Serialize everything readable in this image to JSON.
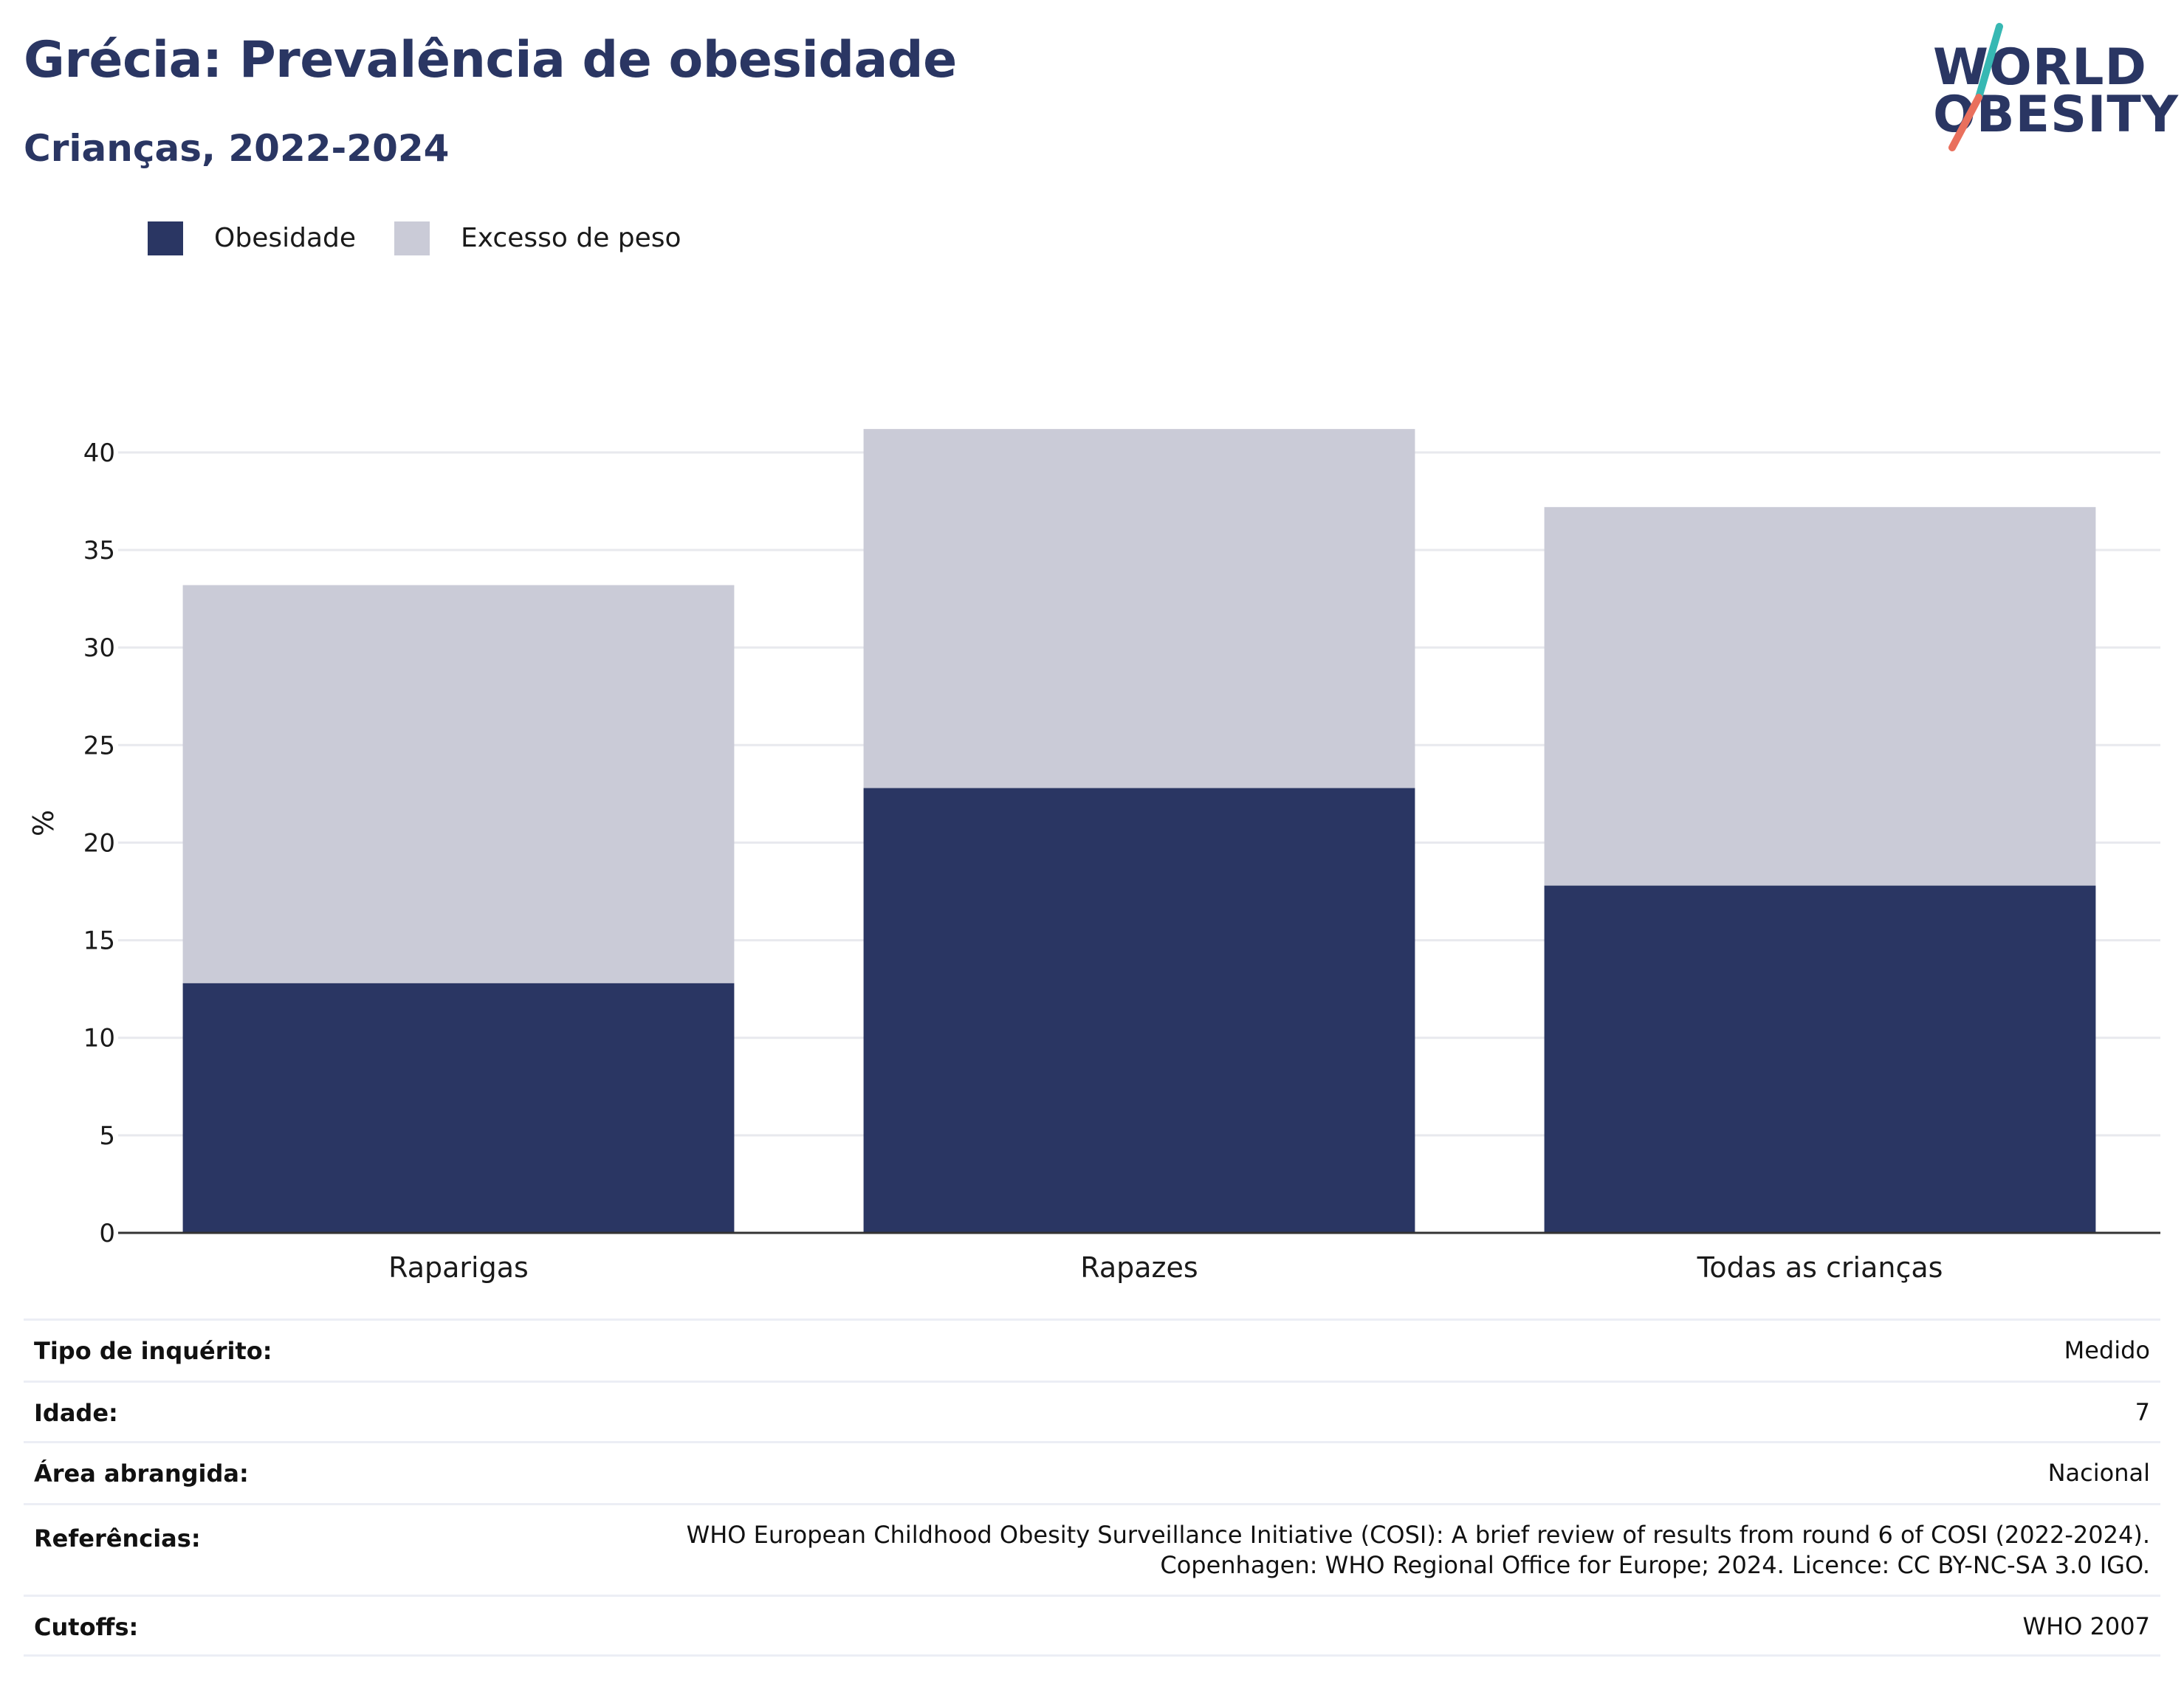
{
  "header": {
    "title": "Grécia: Prevalência de obesidade",
    "subtitle": "Crianças, 2022-2024"
  },
  "logo": {
    "line1": "WORLD",
    "line2": "OBESITY",
    "slash_color_top": "#37b8b3",
    "slash_color_bottom": "#e9705d"
  },
  "legend": [
    {
      "label": "Obesidade",
      "color": "#2a3663"
    },
    {
      "label": "Excesso de peso",
      "color": "#cacbd7"
    }
  ],
  "chart_data": {
    "type": "bar",
    "stacked": true,
    "categories": [
      "Raparigas",
      "Rapazes",
      "Todas as crianças"
    ],
    "series": [
      {
        "name": "Obesidade",
        "color": "#2a3663",
        "values": [
          12.8,
          22.8,
          17.8
        ]
      },
      {
        "name": "Excesso de peso",
        "color": "#cacbd7",
        "values": [
          20.4,
          18.4,
          19.4
        ]
      }
    ],
    "ylabel": "%",
    "ylim": [
      0,
      42
    ],
    "yticks": [
      0,
      5,
      10,
      15,
      20,
      25,
      30,
      35,
      40
    ],
    "grid": true
  },
  "info": [
    {
      "label": "Tipo de inquérito:",
      "value": "Medido"
    },
    {
      "label": "Idade:",
      "value": "7"
    },
    {
      "label": "Área abrangida:",
      "value": "Nacional"
    },
    {
      "label": "Referências:",
      "value": "WHO European Childhood Obesity Surveillance Initiative (COSI): A brief review of results from round 6 of COSI (2022-2024).\nCopenhagen: WHO Regional Office for Europe; 2024. Licence: CC BY-NC-SA 3.0 IGO."
    },
    {
      "label": "Cutoffs:",
      "value": "WHO 2007"
    }
  ]
}
